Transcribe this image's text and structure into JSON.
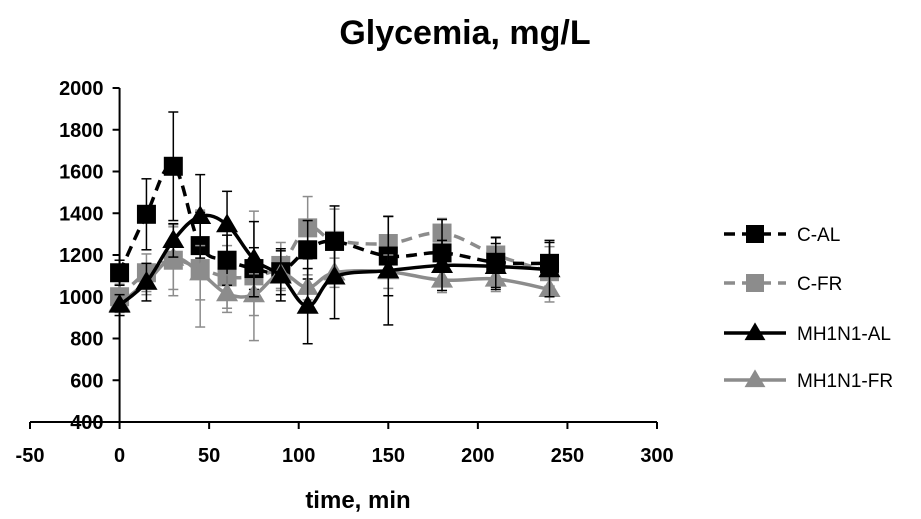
{
  "chart_data": {
    "type": "line",
    "title": "Glycemia, mg/L",
    "xlabel": "time, min",
    "ylabel": "",
    "xlim": [
      -50,
      300
    ],
    "ylim": [
      400,
      2000
    ],
    "xticks": [
      -50,
      0,
      50,
      100,
      150,
      200,
      250,
      300
    ],
    "yticks": [
      400,
      600,
      800,
      1000,
      1200,
      1400,
      1600,
      1800,
      2000
    ],
    "grid": false,
    "legend_position": "right",
    "series": [
      {
        "name": "C-AL",
        "color": "#000000",
        "dashed": true,
        "marker": "square",
        "x": [
          0,
          15,
          30,
          45,
          60,
          75,
          90,
          105,
          120,
          150,
          180,
          210,
          240
        ],
        "y": [
          1115,
          1395,
          1625,
          1245,
          1175,
          1135,
          1120,
          1225,
          1265,
          1195,
          1210,
          1165,
          1160
        ],
        "err": [
          60,
          170,
          260,
          160,
          120,
          100,
          110,
          140,
          170,
          190,
          160,
          120,
          110
        ]
      },
      {
        "name": "C-FR",
        "color": "#8c8c8c",
        "dashed": true,
        "marker": "square",
        "x": [
          0,
          15,
          30,
          45,
          60,
          75,
          90,
          105,
          120,
          150,
          180,
          210,
          240
        ],
        "y": [
          1000,
          1115,
          1175,
          1135,
          1095,
          1100,
          1150,
          1330,
          1270,
          1255,
          1305,
          1200,
          1120
        ],
        "err": [
          60,
          90,
          170,
          280,
          150,
          310,
          110,
          150,
          150,
          130,
          70,
          80,
          120
        ]
      },
      {
        "name": "MH1N1-AL",
        "color": "#000000",
        "dashed": false,
        "marker": "triangle",
        "x": [
          0,
          15,
          30,
          45,
          60,
          75,
          90,
          105,
          120,
          150,
          180,
          210,
          240
        ],
        "y": [
          960,
          1070,
          1270,
          1385,
          1345,
          1180,
          1100,
          955,
          1095,
          1125,
          1150,
          1145,
          1130
        ],
        "err": [
          50,
          90,
          80,
          200,
          160,
          180,
          120,
          180,
          200,
          260,
          120,
          110,
          130
        ]
      },
      {
        "name": "MH1N1-FR",
        "color": "#8c8c8c",
        "dashed": false,
        "marker": "triangle",
        "x": [
          0,
          15,
          30,
          45,
          60,
          75,
          90,
          105,
          120,
          150,
          180,
          210,
          240
        ],
        "y": [
          965,
          1070,
          1185,
          1115,
          1015,
          1010,
          1110,
          1045,
          1115,
          1120,
          1080,
          1085,
          1035
        ],
        "err": [
          40,
          60,
          150,
          130,
          90,
          100,
          80,
          60,
          70,
          80,
          60,
          60,
          60
        ]
      }
    ]
  }
}
